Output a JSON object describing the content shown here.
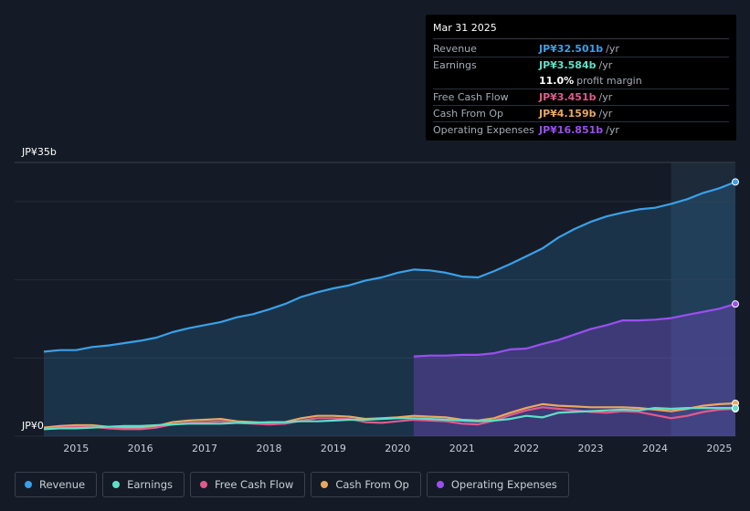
{
  "tooltip": {
    "date": "Mar 31 2025",
    "rows": [
      {
        "label": "Revenue",
        "value": "JP¥32.501b",
        "unit": "/yr",
        "color": "#3aa0e8"
      },
      {
        "label": "Earnings",
        "value": "JP¥3.584b",
        "unit": "/yr",
        "color": "#5ee0c8"
      },
      {
        "label": "",
        "value": "11.0%",
        "unit": "profit margin",
        "color": "#ffffff"
      },
      {
        "label": "Free Cash Flow",
        "value": "JP¥3.451b",
        "unit": "/yr",
        "color": "#e05a8c"
      },
      {
        "label": "Cash From Op",
        "value": "JP¥4.159b",
        "unit": "/yr",
        "color": "#e8a860"
      },
      {
        "label": "Operating Expenses",
        "value": "JP¥16.851b",
        "unit": "/yr",
        "color": "#9a4ff0"
      }
    ]
  },
  "legend": [
    {
      "label": "Revenue",
      "color": "#3aa0e8"
    },
    {
      "label": "Earnings",
      "color": "#5ee0c8"
    },
    {
      "label": "Free Cash Flow",
      "color": "#e05a8c"
    },
    {
      "label": "Cash From Op",
      "color": "#e8a860"
    },
    {
      "label": "Operating Expenses",
      "color": "#9a4ff0"
    }
  ],
  "chart_data": {
    "type": "line",
    "title": "",
    "y_top_label": "JP¥35b",
    "y_bottom_label": "JP¥0",
    "ylim": [
      0,
      35
    ],
    "xlim": [
      2014.5,
      2025.25
    ],
    "x_ticks": [
      "2015",
      "2016",
      "2017",
      "2018",
      "2019",
      "2020",
      "2021",
      "2022",
      "2023",
      "2024",
      "2025"
    ],
    "highlight_from": 2024.25,
    "series": [
      {
        "name": "Revenue",
        "color": "#3aa0e8",
        "area": true,
        "x": [
          2014.5,
          2014.75,
          2015.0,
          2015.25,
          2015.5,
          2015.75,
          2016.0,
          2016.25,
          2016.5,
          2016.75,
          2017.0,
          2017.25,
          2017.5,
          2017.75,
          2018.0,
          2018.25,
          2018.5,
          2018.75,
          2019.0,
          2019.25,
          2019.5,
          2019.75,
          2020.0,
          2020.25,
          2020.5,
          2020.75,
          2021.0,
          2021.25,
          2021.5,
          2021.75,
          2022.0,
          2022.25,
          2022.5,
          2022.75,
          2023.0,
          2023.25,
          2023.5,
          2023.75,
          2024.0,
          2024.25,
          2024.5,
          2024.75,
          2025.0,
          2025.25
        ],
        "y": [
          10.8,
          11.0,
          11.0,
          11.4,
          11.6,
          11.9,
          12.2,
          12.6,
          13.3,
          13.8,
          14.2,
          14.6,
          15.2,
          15.6,
          16.2,
          16.9,
          17.8,
          18.4,
          18.9,
          19.3,
          19.9,
          20.3,
          20.9,
          21.3,
          21.2,
          20.9,
          20.4,
          20.3,
          21.1,
          22.0,
          23.0,
          24.0,
          25.4,
          26.5,
          27.4,
          28.1,
          28.6,
          29.0,
          29.2,
          29.7,
          30.3,
          31.1,
          31.7,
          32.5
        ]
      },
      {
        "name": "Operating Expenses",
        "color": "#9a4ff0",
        "area": true,
        "x": [
          2020.25,
          2020.5,
          2020.75,
          2021.0,
          2021.25,
          2021.5,
          2021.75,
          2022.0,
          2022.25,
          2022.5,
          2022.75,
          2023.0,
          2023.25,
          2023.5,
          2023.75,
          2024.0,
          2024.25,
          2024.5,
          2024.75,
          2025.0,
          2025.25
        ],
        "y": [
          10.2,
          10.3,
          10.3,
          10.4,
          10.4,
          10.6,
          11.1,
          11.2,
          11.8,
          12.3,
          13.0,
          13.7,
          14.2,
          14.8,
          14.8,
          14.9,
          15.1,
          15.5,
          15.9,
          16.3,
          16.9
        ]
      },
      {
        "name": "Cash From Op",
        "color": "#e8a860",
        "area": false,
        "x": [
          2014.5,
          2014.75,
          2015.0,
          2015.25,
          2015.5,
          2015.75,
          2016.0,
          2016.25,
          2016.5,
          2016.75,
          2017.0,
          2017.25,
          2017.5,
          2017.75,
          2018.0,
          2018.25,
          2018.5,
          2018.75,
          2019.0,
          2019.25,
          2019.5,
          2019.75,
          2020.0,
          2020.25,
          2020.5,
          2020.75,
          2021.0,
          2021.25,
          2021.5,
          2021.75,
          2022.0,
          2022.25,
          2022.5,
          2022.75,
          2023.0,
          2023.25,
          2023.5,
          2023.75,
          2024.0,
          2024.25,
          2024.5,
          2024.75,
          2025.0,
          2025.25
        ],
        "y": [
          1.1,
          1.3,
          1.4,
          1.4,
          1.2,
          1.1,
          1.1,
          1.3,
          1.8,
          2.0,
          2.1,
          2.2,
          1.9,
          1.8,
          1.7,
          1.8,
          2.3,
          2.6,
          2.6,
          2.5,
          2.2,
          2.3,
          2.4,
          2.6,
          2.5,
          2.4,
          2.1,
          2.0,
          2.3,
          3.0,
          3.6,
          4.1,
          3.9,
          3.8,
          3.7,
          3.7,
          3.7,
          3.6,
          3.4,
          3.2,
          3.5,
          3.9,
          4.1,
          4.2
        ]
      },
      {
        "name": "Free Cash Flow",
        "color": "#e05a8c",
        "area": false,
        "x": [
          2014.5,
          2014.75,
          2015.0,
          2015.25,
          2015.5,
          2015.75,
          2016.0,
          2016.25,
          2016.5,
          2016.75,
          2017.0,
          2017.25,
          2017.5,
          2017.75,
          2018.0,
          2018.25,
          2018.5,
          2018.75,
          2019.0,
          2019.25,
          2019.5,
          2019.75,
          2020.0,
          2020.25,
          2020.5,
          2020.75,
          2021.0,
          2021.25,
          2021.5,
          2021.75,
          2022.0,
          2022.25,
          2022.5,
          2022.75,
          2023.0,
          2023.25,
          2023.5,
          2023.75,
          2024.0,
          2024.25,
          2024.5,
          2024.75,
          2025.0,
          2025.25
        ],
        "y": [
          0.9,
          1.1,
          1.2,
          1.2,
          1.0,
          0.9,
          0.9,
          1.1,
          1.5,
          1.7,
          1.8,
          1.9,
          1.7,
          1.6,
          1.5,
          1.6,
          2.0,
          2.3,
          2.3,
          2.2,
          1.8,
          1.7,
          1.9,
          2.1,
          2.0,
          1.9,
          1.6,
          1.5,
          2.0,
          2.7,
          3.3,
          3.7,
          3.5,
          3.3,
          3.1,
          3.0,
          3.2,
          3.1,
          2.7,
          2.3,
          2.6,
          3.1,
          3.4,
          3.5
        ]
      },
      {
        "name": "Earnings",
        "color": "#5ee0c8",
        "area": false,
        "x": [
          2014.5,
          2014.75,
          2015.0,
          2015.25,
          2015.5,
          2015.75,
          2016.0,
          2016.25,
          2016.5,
          2016.75,
          2017.0,
          2017.25,
          2017.5,
          2017.75,
          2018.0,
          2018.25,
          2018.5,
          2018.75,
          2019.0,
          2019.25,
          2019.5,
          2019.75,
          2020.0,
          2020.25,
          2020.5,
          2020.75,
          2021.0,
          2021.25,
          2021.5,
          2021.75,
          2022.0,
          2022.25,
          2022.5,
          2022.75,
          2023.0,
          2023.25,
          2023.5,
          2023.75,
          2024.0,
          2024.25,
          2024.5,
          2024.75,
          2025.0,
          2025.25
        ],
        "y": [
          0.9,
          1.0,
          1.0,
          1.1,
          1.2,
          1.3,
          1.3,
          1.4,
          1.5,
          1.6,
          1.6,
          1.6,
          1.7,
          1.7,
          1.8,
          1.8,
          1.9,
          1.9,
          2.0,
          2.1,
          2.1,
          2.2,
          2.3,
          2.3,
          2.2,
          2.1,
          2.0,
          1.9,
          2.0,
          2.2,
          2.6,
          2.4,
          3.0,
          3.1,
          3.2,
          3.3,
          3.4,
          3.3,
          3.6,
          3.5,
          3.6,
          3.6,
          3.6,
          3.6
        ]
      }
    ]
  }
}
